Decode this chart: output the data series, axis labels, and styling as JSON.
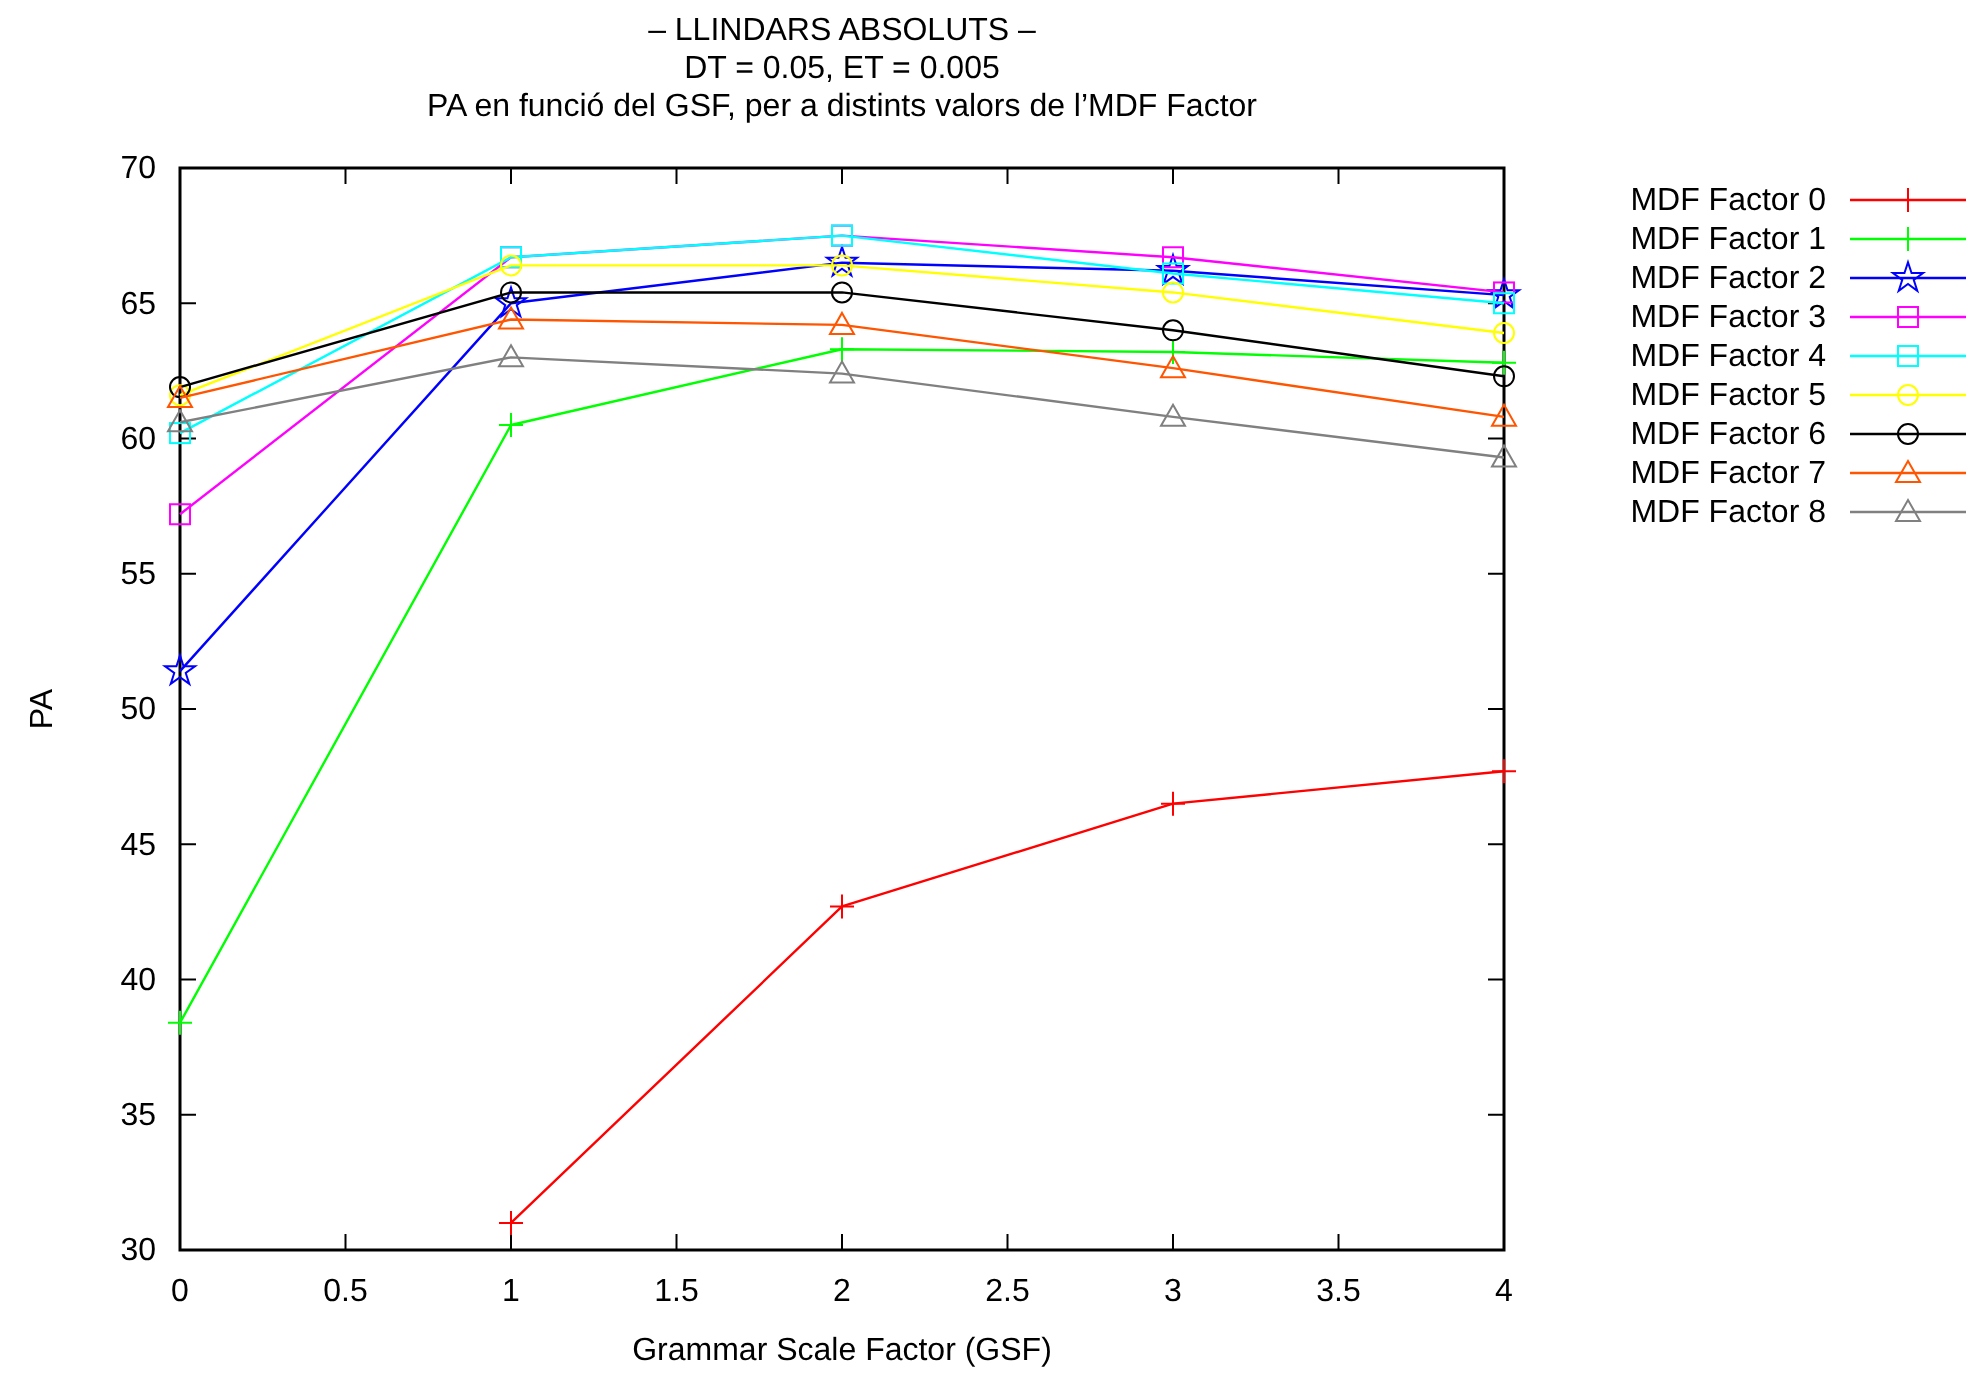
{
  "chart_data": {
    "type": "line",
    "title": "– LLINDARS ABSOLUTS –\nDT = 0.05, ET = 0.005\nPA en funció del GSF, per a distints valors de l’MDF Factor",
    "xlabel": "Grammar Scale Factor (GSF)",
    "ylabel": "PA",
    "x": [
      0,
      1,
      2,
      3,
      4
    ],
    "xlim": [
      0,
      4
    ],
    "ylim": [
      30,
      70
    ],
    "xticks": [
      0,
      0.5,
      1,
      1.5,
      2,
      2.5,
      3,
      3.5,
      4
    ],
    "yticks": [
      30,
      35,
      40,
      45,
      50,
      55,
      60,
      65,
      70
    ],
    "legend": "right",
    "series": [
      {
        "name": "MDF Factor 0",
        "color": "#ff0000",
        "marker": "cross",
        "values": [
          null,
          31.0,
          42.7,
          46.5,
          47.7
        ]
      },
      {
        "name": "MDF Factor 1",
        "color": "#00ff00",
        "marker": "cross",
        "values": [
          38.4,
          60.5,
          63.3,
          63.2,
          62.8
        ]
      },
      {
        "name": "MDF Factor 2",
        "color": "#0000ff",
        "marker": "star",
        "values": [
          51.4,
          65.0,
          66.5,
          66.2,
          65.3
        ]
      },
      {
        "name": "MDF Factor 3",
        "color": "#ff00ff",
        "marker": "square",
        "values": [
          57.2,
          66.7,
          67.5,
          66.7,
          65.4
        ]
      },
      {
        "name": "MDF Factor 4",
        "color": "#00ffff",
        "marker": "square",
        "values": [
          60.2,
          66.7,
          67.5,
          66.1,
          65.0
        ]
      },
      {
        "name": "MDF Factor 5",
        "color": "#ffff00",
        "marker": "circle",
        "values": [
          61.6,
          66.4,
          66.4,
          65.4,
          63.9
        ]
      },
      {
        "name": "MDF Factor 6",
        "color": "#000000",
        "marker": "circle",
        "values": [
          61.9,
          65.4,
          65.4,
          64.0,
          62.3
        ]
      },
      {
        "name": "MDF Factor 7",
        "color": "#ff5500",
        "marker": "triangle",
        "values": [
          61.5,
          64.4,
          64.2,
          62.6,
          60.8
        ]
      },
      {
        "name": "MDF Factor 8",
        "color": "#808080",
        "marker": "triangle",
        "values": [
          60.6,
          63.0,
          62.4,
          60.8,
          59.3
        ]
      }
    ]
  }
}
